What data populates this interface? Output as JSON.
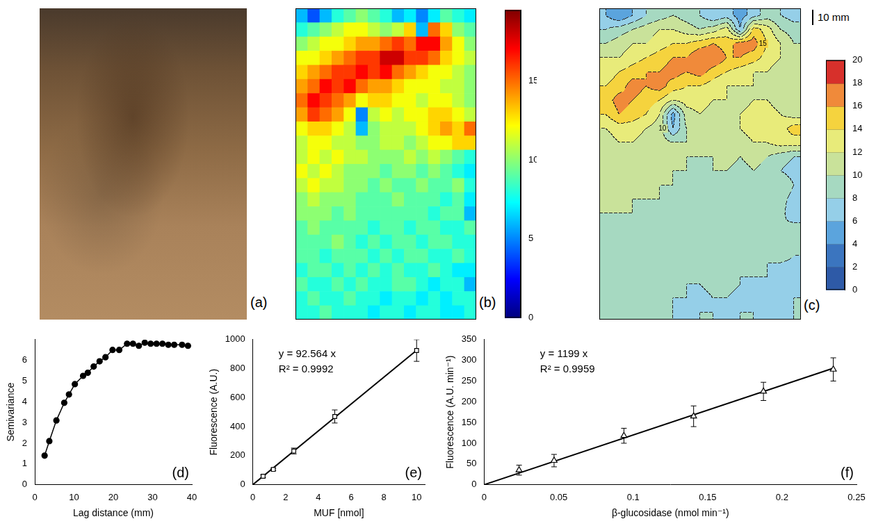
{
  "chart_data": [
    {
      "type": "image",
      "panel": "(a)"
    },
    {
      "type": "heatmap",
      "panel": "(b)",
      "tick_labels": false,
      "cells": [
        [
          6,
          4,
          6,
          8,
          9,
          10,
          9,
          8,
          6,
          7,
          5,
          7,
          9,
          8,
          7
        ],
        [
          8,
          9,
          10,
          11,
          12,
          12,
          11,
          10,
          11,
          13,
          6,
          15,
          13,
          10,
          9
        ],
        [
          10,
          11,
          12,
          12,
          13,
          14,
          14,
          15,
          16,
          15,
          17,
          17,
          14,
          12,
          10
        ],
        [
          12,
          12,
          13,
          14,
          15,
          16,
          16,
          18,
          18,
          16,
          16,
          15,
          13,
          12,
          11
        ],
        [
          13,
          14,
          15,
          16,
          16,
          17,
          16,
          17,
          15,
          14,
          13,
          12,
          12,
          11,
          10
        ],
        [
          14,
          15,
          17,
          16,
          17,
          15,
          14,
          14,
          13,
          12,
          12,
          12,
          11,
          11,
          10
        ],
        [
          15,
          17,
          16,
          15,
          14,
          12,
          13,
          13,
          12,
          12,
          11,
          12,
          12,
          11,
          10
        ],
        [
          14,
          16,
          15,
          14,
          12,
          5,
          11,
          12,
          11,
          12,
          12,
          13,
          13,
          12,
          11
        ],
        [
          12,
          13,
          13,
          12,
          11,
          6,
          10,
          11,
          11,
          11,
          12,
          13,
          14,
          13,
          15
        ],
        [
          11,
          12,
          12,
          11,
          11,
          10,
          10,
          11,
          11,
          10,
          11,
          12,
          12,
          13,
          13
        ],
        [
          11,
          12,
          11,
          12,
          11,
          11,
          10,
          10,
          10,
          11,
          10,
          11,
          10,
          9,
          8
        ],
        [
          12,
          11,
          12,
          11,
          10,
          10,
          10,
          9,
          10,
          10,
          9,
          10,
          9,
          8,
          7
        ],
        [
          11,
          12,
          11,
          11,
          10,
          10,
          9,
          10,
          9,
          9,
          10,
          9,
          9,
          10,
          8
        ],
        [
          10,
          11,
          10,
          10,
          10,
          9,
          9,
          9,
          10,
          9,
          9,
          9,
          8,
          9,
          7
        ],
        [
          10,
          10,
          10,
          9,
          10,
          9,
          9,
          9,
          9,
          9,
          9,
          8,
          9,
          9,
          6
        ],
        [
          9,
          10,
          9,
          9,
          9,
          9,
          8,
          9,
          9,
          8,
          9,
          9,
          8,
          8,
          9
        ],
        [
          9,
          9,
          9,
          10,
          9,
          8,
          9,
          8,
          9,
          9,
          8,
          9,
          9,
          8,
          8
        ],
        [
          9,
          9,
          8,
          9,
          9,
          9,
          8,
          9,
          8,
          9,
          9,
          8,
          8,
          9,
          8
        ],
        [
          8,
          9,
          9,
          8,
          9,
          8,
          9,
          8,
          9,
          8,
          8,
          9,
          8,
          7,
          7
        ],
        [
          9,
          8,
          8,
          9,
          8,
          9,
          8,
          8,
          9,
          9,
          8,
          7,
          8,
          8,
          6
        ],
        [
          8,
          9,
          8,
          8,
          9,
          8,
          8,
          7,
          8,
          8,
          7,
          8,
          7,
          8,
          8
        ],
        [
          8,
          8,
          9,
          8,
          8,
          8,
          7,
          8,
          8,
          7,
          8,
          8,
          7,
          7,
          8
        ]
      ],
      "colorbar": {
        "ylim": [
          0,
          19.5
        ],
        "yticks": [
          0,
          5,
          10,
          15
        ]
      }
    },
    {
      "type": "contour",
      "panel": "(c)",
      "tick_labels": false,
      "scale_bar": "10 mm",
      "contour_labels": [
        10,
        15
      ],
      "cells": [
        [
          6,
          4,
          6,
          8,
          9,
          10,
          9,
          8,
          6,
          7,
          5,
          7,
          9,
          8,
          7
        ],
        [
          8,
          9,
          10,
          11,
          12,
          12,
          11,
          10,
          11,
          13,
          6,
          15,
          13,
          10,
          9
        ],
        [
          10,
          11,
          12,
          12,
          13,
          14,
          14,
          15,
          16,
          15,
          17,
          17,
          14,
          12,
          10
        ],
        [
          12,
          12,
          13,
          14,
          15,
          16,
          16,
          18,
          18,
          16,
          16,
          15,
          13,
          12,
          11
        ],
        [
          13,
          14,
          15,
          16,
          16,
          17,
          16,
          17,
          15,
          14,
          13,
          12,
          12,
          11,
          10
        ],
        [
          14,
          15,
          17,
          16,
          17,
          15,
          14,
          14,
          13,
          12,
          12,
          12,
          11,
          11,
          10
        ],
        [
          15,
          17,
          16,
          15,
          14,
          12,
          13,
          13,
          12,
          12,
          11,
          12,
          12,
          11,
          10
        ],
        [
          14,
          16,
          15,
          14,
          12,
          5,
          11,
          12,
          11,
          12,
          12,
          13,
          13,
          12,
          11
        ],
        [
          12,
          13,
          13,
          12,
          11,
          6,
          10,
          11,
          11,
          11,
          12,
          13,
          14,
          13,
          15
        ],
        [
          11,
          12,
          12,
          11,
          11,
          10,
          10,
          11,
          11,
          10,
          11,
          12,
          12,
          13,
          13
        ],
        [
          11,
          12,
          11,
          12,
          11,
          11,
          10,
          10,
          10,
          11,
          10,
          11,
          10,
          9,
          8
        ],
        [
          12,
          11,
          12,
          11,
          10,
          10,
          10,
          9,
          10,
          10,
          9,
          10,
          9,
          8,
          7
        ],
        [
          11,
          12,
          11,
          11,
          10,
          10,
          9,
          10,
          9,
          9,
          10,
          9,
          9,
          10,
          8
        ],
        [
          10,
          11,
          10,
          10,
          10,
          9,
          9,
          9,
          10,
          9,
          9,
          9,
          8,
          9,
          7
        ],
        [
          10,
          10,
          10,
          9,
          10,
          9,
          9,
          9,
          9,
          9,
          9,
          8,
          9,
          9,
          6
        ],
        [
          9,
          10,
          9,
          9,
          9,
          9,
          8,
          9,
          9,
          8,
          9,
          9,
          8,
          8,
          9
        ],
        [
          9,
          9,
          9,
          10,
          9,
          8,
          9,
          8,
          9,
          9,
          8,
          9,
          9,
          8,
          8
        ],
        [
          9,
          9,
          8,
          9,
          9,
          9,
          8,
          9,
          8,
          9,
          9,
          8,
          8,
          9,
          8
        ],
        [
          8,
          9,
          9,
          8,
          9,
          8,
          9,
          8,
          9,
          8,
          8,
          9,
          8,
          7,
          7
        ],
        [
          9,
          8,
          8,
          9,
          8,
          9,
          8,
          8,
          9,
          9,
          8,
          7,
          8,
          8,
          6
        ],
        [
          8,
          9,
          8,
          8,
          9,
          8,
          8,
          7,
          8,
          8,
          7,
          8,
          7,
          8,
          8
        ],
        [
          8,
          8,
          9,
          8,
          8,
          8,
          7,
          8,
          8,
          7,
          8,
          8,
          7,
          7,
          8
        ]
      ],
      "colorbar": {
        "ylim": [
          0,
          20
        ],
        "yticks": [
          0,
          2,
          4,
          6,
          8,
          10,
          12,
          14,
          16,
          18,
          20
        ],
        "colors": [
          "#2e5aa7",
          "#3b75bf",
          "#5ba4dd",
          "#95cfe8",
          "#a6d9c1",
          "#c9e29a",
          "#e8eb7a",
          "#f5d33e",
          "#f08a3a",
          "#d7302b"
        ]
      }
    },
    {
      "type": "line",
      "panel": "(d)",
      "x_label": "Lag distance (mm)",
      "y_label": "Semivariance",
      "x": [
        2.5,
        3.7,
        5.5,
        7.5,
        8.7,
        10.2,
        12.3,
        13.5,
        15,
        16.5,
        18,
        19.8,
        21.5,
        23.5,
        25,
        26.5,
        28,
        29.5,
        31,
        32.5,
        34,
        35.5,
        37.5,
        39
      ],
      "values": [
        1.4,
        2.1,
        3.1,
        3.95,
        4.35,
        4.85,
        5.25,
        5.4,
        5.7,
        5.95,
        6.15,
        6.5,
        6.5,
        6.8,
        6.8,
        6.7,
        6.85,
        6.8,
        6.8,
        6.8,
        6.75,
        6.75,
        6.75,
        6.7
      ],
      "color": "#000000",
      "marker": "circle",
      "grid": false,
      "xlim": [
        0,
        40
      ],
      "xticks": [
        0,
        10,
        20,
        30,
        40
      ],
      "ylim": [
        0,
        7
      ],
      "yticks": [
        0,
        1,
        2,
        3,
        4,
        5,
        6
      ]
    },
    {
      "type": "scatter",
      "panel": "(e)",
      "x_label": "MUF [nmol]",
      "y_label": "Fluorescence (A.U.)",
      "annotations": [
        "y = 92.564 x",
        "R² = 0.9992"
      ],
      "x": [
        0.625,
        1.25,
        2.5,
        5,
        10
      ],
      "values": [
        58,
        105,
        232,
        470,
        925
      ],
      "errors": [
        10,
        8,
        20,
        45,
        75
      ],
      "fit": {
        "slope": 92.564,
        "x": [
          0,
          10
        ]
      },
      "color": "#000000",
      "marker": "open-square",
      "grid": false,
      "xlim": [
        0,
        10.5
      ],
      "xticks": [
        0,
        2,
        4,
        6,
        8,
        10
      ],
      "ylim": [
        0,
        1000
      ],
      "yticks": [
        0,
        200,
        400,
        600,
        800,
        1000
      ]
    },
    {
      "type": "scatter",
      "panel": "(f)",
      "x_label": "β-glucosidase (nmol min⁻¹)",
      "y_label": "Fluorescence (A.U. min⁻¹)",
      "annotations": [
        "y = 1199 x",
        "R² = 0.9959"
      ],
      "x": [
        0.0234,
        0.0469,
        0.0938,
        0.1406,
        0.1875,
        0.2344
      ],
      "values": [
        35,
        58,
        118,
        165,
        225,
        278
      ],
      "errors": [
        12,
        15,
        18,
        25,
        22,
        28
      ],
      "fit": {
        "slope": 1199,
        "x": [
          0,
          0.2344
        ]
      },
      "color": "#000000",
      "marker": "open-triangle",
      "grid": false,
      "xlim": [
        0,
        0.25
      ],
      "xticks": [
        0,
        0.05,
        0.1,
        0.15,
        0.2,
        0.25
      ],
      "ylim": [
        0,
        350
      ],
      "yticks": [
        0,
        50,
        100,
        150,
        200,
        250,
        300,
        350
      ]
    }
  ]
}
